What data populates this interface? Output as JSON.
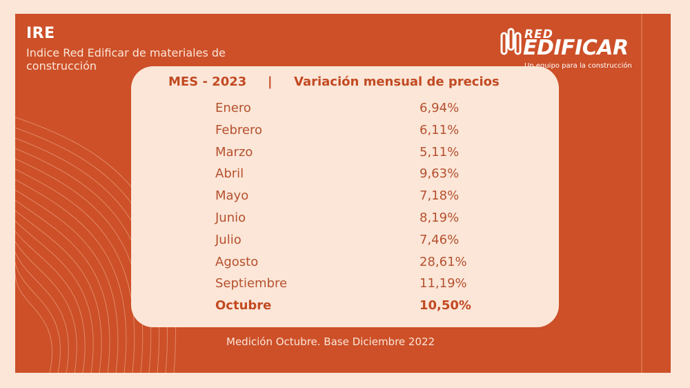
{
  "header": {
    "title": "IRE",
    "subtitle": "Indice Red Edificar de materiales de construcción"
  },
  "logo": {
    "red": "RED",
    "name": "EDIFICAR",
    "tagline": "Un equipo para la construcción"
  },
  "table": {
    "month_header": "MES - 2023",
    "separator": "|",
    "value_header": "Variación mensual de precios",
    "rows": [
      {
        "month": "Enero",
        "value": "6,94%"
      },
      {
        "month": "Febrero",
        "value": "6,11%"
      },
      {
        "month": "Marzo",
        "value": "5,11%"
      },
      {
        "month": "Abril",
        "value": "9,63%"
      },
      {
        "month": "Mayo",
        "value": "7,18%"
      },
      {
        "month": "Junio",
        "value": "8,19%"
      },
      {
        "month": "Julio",
        "value": "7,46%"
      },
      {
        "month": "Agosto",
        "value": "28,61%"
      },
      {
        "month": "Septiembre",
        "value": "11,19%"
      },
      {
        "month": "Octubre",
        "value": "10,50%"
      }
    ]
  },
  "footnote": "Medición Octubre. Base Diciembre 2022",
  "colors": {
    "background": "#fbe6d8",
    "panel": "#cd5028",
    "accent": "#c24a22"
  }
}
